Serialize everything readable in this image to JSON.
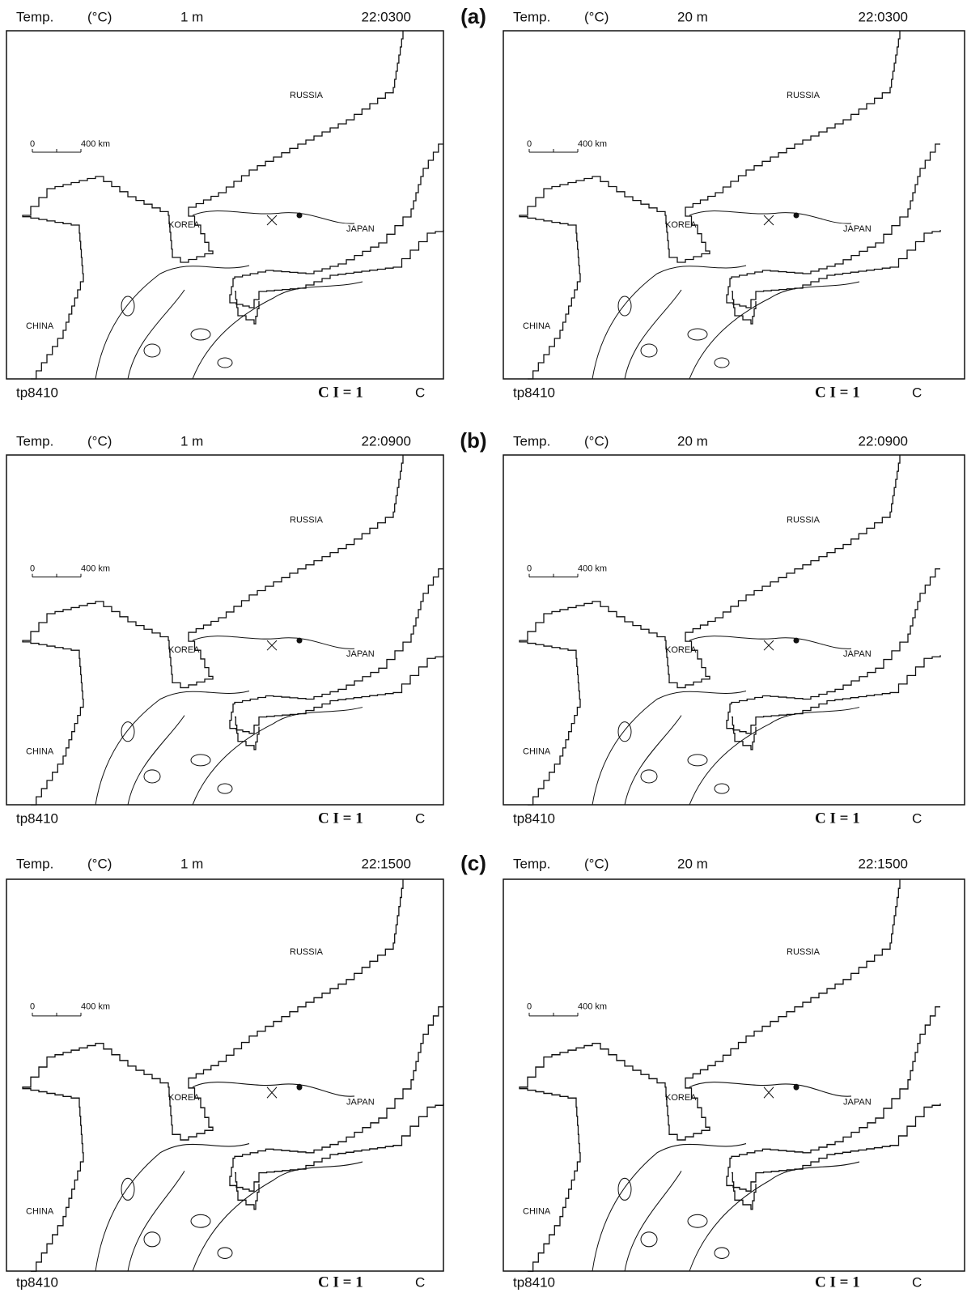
{
  "figure": {
    "rows": [
      {
        "label": "(a)",
        "panels": [
          {
            "header": {
              "variable": "Temp.",
              "unit": "(°C)",
              "depth": "1 m",
              "time": "22:0300"
            },
            "labels": {
              "russia": "RUSSIA",
              "korea": "KOREA",
              "japan": "JAPAN",
              "china": "CHINA"
            },
            "scale": {
              "start": "0",
              "end": "400 km"
            },
            "footer": {
              "run": "tp8410",
              "interval": "C I = 1",
              "unit": "C"
            }
          },
          {
            "header": {
              "variable": "Temp.",
              "unit": "(°C)",
              "depth": "20 m",
              "time": "22:0300"
            },
            "labels": {
              "russia": "RUSSIA",
              "korea": "KOREA",
              "japan": "JAPAN",
              "china": "CHINA"
            },
            "scale": {
              "start": "0",
              "end": "400 km"
            },
            "footer": {
              "run": "tp8410",
              "interval": "C I = 1",
              "unit": "C"
            }
          }
        ]
      },
      {
        "label": "(b)",
        "panels": [
          {
            "header": {
              "variable": "Temp.",
              "unit": "(°C)",
              "depth": "1 m",
              "time": "22:0900"
            },
            "labels": {
              "russia": "RUSSIA",
              "korea": "KOREA",
              "japan": "JAPAN",
              "china": "CHINA"
            },
            "scale": {
              "start": "0",
              "end": "400 km"
            },
            "footer": {
              "run": "tp8410",
              "interval": "C I = 1",
              "unit": "C"
            }
          },
          {
            "header": {
              "variable": "Temp.",
              "unit": "(°C)",
              "depth": "20 m",
              "time": "22:0900"
            },
            "labels": {
              "russia": "RUSSIA",
              "korea": "KOREA",
              "japan": "JAPAN",
              "china": "CHINA"
            },
            "scale": {
              "start": "0",
              "end": "400 km"
            },
            "footer": {
              "run": "tp8410",
              "interval": "C I = 1",
              "unit": "C"
            }
          }
        ]
      },
      {
        "label": "(c)",
        "panels": [
          {
            "header": {
              "variable": "Temp.",
              "unit": "(°C)",
              "depth": "1 m",
              "time": "22:1500"
            },
            "labels": {
              "russia": "RUSSIA",
              "korea": "KOREA",
              "japan": "JAPAN",
              "china": "CHINA"
            },
            "scale": {
              "start": "0",
              "end": "400 km"
            },
            "footer": {
              "run": "tp8410",
              "interval": "C I = 1",
              "unit": "C"
            }
          },
          {
            "header": {
              "variable": "Temp.",
              "unit": "(°C)",
              "depth": "20 m",
              "time": "22:1500"
            },
            "labels": {
              "russia": "RUSSIA",
              "korea": "KOREA",
              "japan": "JAPAN",
              "china": "CHINA"
            },
            "scale": {
              "start": "0",
              "end": "400 km"
            },
            "footer": {
              "run": "tp8410",
              "interval": "C I = 1",
              "unit": "C"
            }
          }
        ]
      }
    ]
  }
}
